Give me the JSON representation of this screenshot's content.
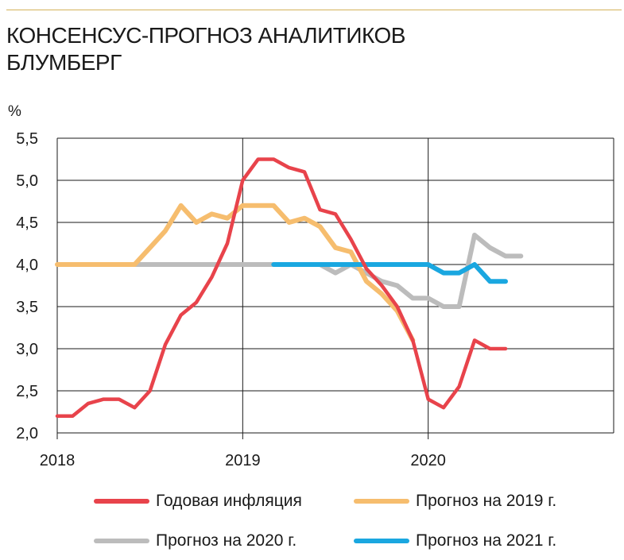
{
  "header": {
    "title_line1": "КОНСЕНСУС-ПРОГНОЗ АНАЛИТИКОВ",
    "title_line2": "БЛУМБЕРГ"
  },
  "colors": {
    "inflation": "#e8434b",
    "forecast_2019": "#f6bd6e",
    "forecast_2020": "#bcbcbc",
    "forecast_2021": "#1aa7e0",
    "top_rule": "#d4b25a"
  },
  "chart_data": {
    "type": "line",
    "title": "КОНСЕНСУС-ПРОГНОЗ АНАЛИТИКОВ БЛУМБЕРГ",
    "ylabel": "%",
    "xlim": [
      2018.0,
      2021.0
    ],
    "ylim": [
      2.0,
      5.5
    ],
    "yticks": [
      "2,0",
      "2,5",
      "3,0",
      "3,5",
      "4,0",
      "4,5",
      "5,0",
      "5,5"
    ],
    "ytick_values": [
      2.0,
      2.5,
      3.0,
      3.5,
      4.0,
      4.5,
      5.0,
      5.5
    ],
    "xticks": [
      "2018",
      "2019",
      "2020"
    ],
    "xtick_values": [
      2018.0,
      2019.0,
      2020.0
    ],
    "grid": true,
    "legend_position": "bottom",
    "series": [
      {
        "name": "Годовая инфляция",
        "color_key": "inflation",
        "x": [
          2018.0,
          2018.083,
          2018.167,
          2018.25,
          2018.333,
          2018.417,
          2018.5,
          2018.583,
          2018.667,
          2018.75,
          2018.833,
          2018.917,
          2019.0,
          2019.083,
          2019.167,
          2019.25,
          2019.333,
          2019.417,
          2019.5,
          2019.583,
          2019.667,
          2019.75,
          2019.833,
          2019.917,
          2020.0,
          2020.083,
          2020.167,
          2020.25,
          2020.333,
          2020.417
        ],
        "values": [
          2.2,
          2.2,
          2.35,
          2.4,
          2.4,
          2.3,
          2.5,
          3.05,
          3.4,
          3.55,
          3.85,
          4.25,
          5.0,
          5.25,
          5.25,
          5.15,
          5.1,
          4.65,
          4.6,
          4.3,
          3.95,
          3.75,
          3.5,
          3.1,
          2.4,
          2.3,
          2.55,
          3.1,
          3.0,
          3.0
        ]
      },
      {
        "name": "Прогноз на 2019 г.",
        "color_key": "forecast_2019",
        "x": [
          2018.0,
          2018.083,
          2018.167,
          2018.25,
          2018.333,
          2018.417,
          2018.5,
          2018.583,
          2018.667,
          2018.75,
          2018.833,
          2018.917,
          2019.0,
          2019.083,
          2019.167,
          2019.25,
          2019.333,
          2019.417,
          2019.5,
          2019.583,
          2019.667,
          2019.75,
          2019.833,
          2019.917
        ],
        "values": [
          4.0,
          4.0,
          4.0,
          4.0,
          4.0,
          4.0,
          4.2,
          4.4,
          4.7,
          4.5,
          4.6,
          4.55,
          4.7,
          4.7,
          4.7,
          4.5,
          4.55,
          4.45,
          4.2,
          4.15,
          3.8,
          3.65,
          3.45,
          3.1
        ]
      },
      {
        "name": "Прогноз на 2020 г.",
        "color_key": "forecast_2020",
        "x": [
          2018.167,
          2018.25,
          2018.333,
          2018.417,
          2018.5,
          2018.583,
          2018.667,
          2018.75,
          2018.833,
          2018.917,
          2019.0,
          2019.083,
          2019.167,
          2019.25,
          2019.333,
          2019.417,
          2019.5,
          2019.583,
          2019.667,
          2019.75,
          2019.833,
          2019.917,
          2020.0,
          2020.083,
          2020.167,
          2020.25,
          2020.333,
          2020.417,
          2020.5
        ],
        "values": [
          4.0,
          4.0,
          4.0,
          4.0,
          4.0,
          4.0,
          4.0,
          4.0,
          4.0,
          4.0,
          4.0,
          4.0,
          4.0,
          4.0,
          4.0,
          4.0,
          3.9,
          4.0,
          3.9,
          3.8,
          3.75,
          3.6,
          3.6,
          3.5,
          3.5,
          4.35,
          4.2,
          4.1,
          4.1
        ]
      },
      {
        "name": "Прогноз на 2021 г.",
        "color_key": "forecast_2021",
        "x": [
          2019.167,
          2019.25,
          2019.333,
          2019.417,
          2019.5,
          2019.583,
          2019.667,
          2019.75,
          2019.833,
          2019.917,
          2020.0,
          2020.083,
          2020.167,
          2020.25,
          2020.333,
          2020.417
        ],
        "values": [
          4.0,
          4.0,
          4.0,
          4.0,
          4.0,
          4.0,
          4.0,
          4.0,
          4.0,
          4.0,
          4.0,
          3.9,
          3.9,
          4.0,
          3.8,
          3.8
        ]
      }
    ]
  }
}
